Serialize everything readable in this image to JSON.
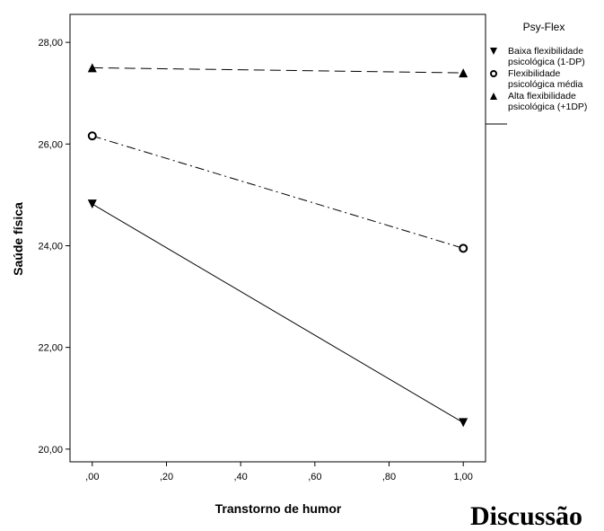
{
  "chart_data": {
    "type": "line",
    "title": "",
    "xlabel": "Transtorno de humor",
    "ylabel": "Saúde física",
    "xlim": [
      -0.06,
      1.06
    ],
    "ylim": [
      19.75,
      28.55
    ],
    "x_ticks": [
      0,
      0.2,
      0.4,
      0.6,
      0.8,
      1.0
    ],
    "x_tick_labels": [
      ",00",
      ",20",
      ",40",
      ",60",
      ",80",
      "1,00"
    ],
    "y_ticks": [
      20,
      22,
      24,
      26,
      28
    ],
    "y_tick_labels": [
      "20,00",
      "22,00",
      "24,00",
      "26,00",
      "28,00"
    ],
    "grid": false,
    "legend": {
      "title": "Psy-Flex",
      "placement": "right"
    },
    "series": [
      {
        "name": "Baixa flexibilidade psicológica (1-DP)",
        "label_lines": [
          "Baixa flexibilidade",
          "psicológica (1-DP)"
        ],
        "marker": "triangle-down",
        "line_style": "solid",
        "color": "#000000",
        "x": [
          0,
          1
        ],
        "values": [
          24.82,
          20.52
        ]
      },
      {
        "name": "Flexibilidade psicológica média",
        "label_lines": [
          "Flexibilidade",
          "psicológica média"
        ],
        "marker": "circle",
        "line_style": "dash-dot",
        "color": "#000000",
        "x": [
          0,
          1
        ],
        "values": [
          26.16,
          23.95
        ]
      },
      {
        "name": "Alta flexibilidade psicológica (+1DP)",
        "label_lines": [
          "Alta flexibilidade",
          "psicológica (+1DP)"
        ],
        "marker": "triangle-up",
        "line_style": "dashed",
        "color": "#000000",
        "x": [
          0,
          1
        ],
        "values": [
          27.5,
          27.4
        ]
      }
    ]
  },
  "page_text": {
    "partial_heading": "Discussão"
  }
}
